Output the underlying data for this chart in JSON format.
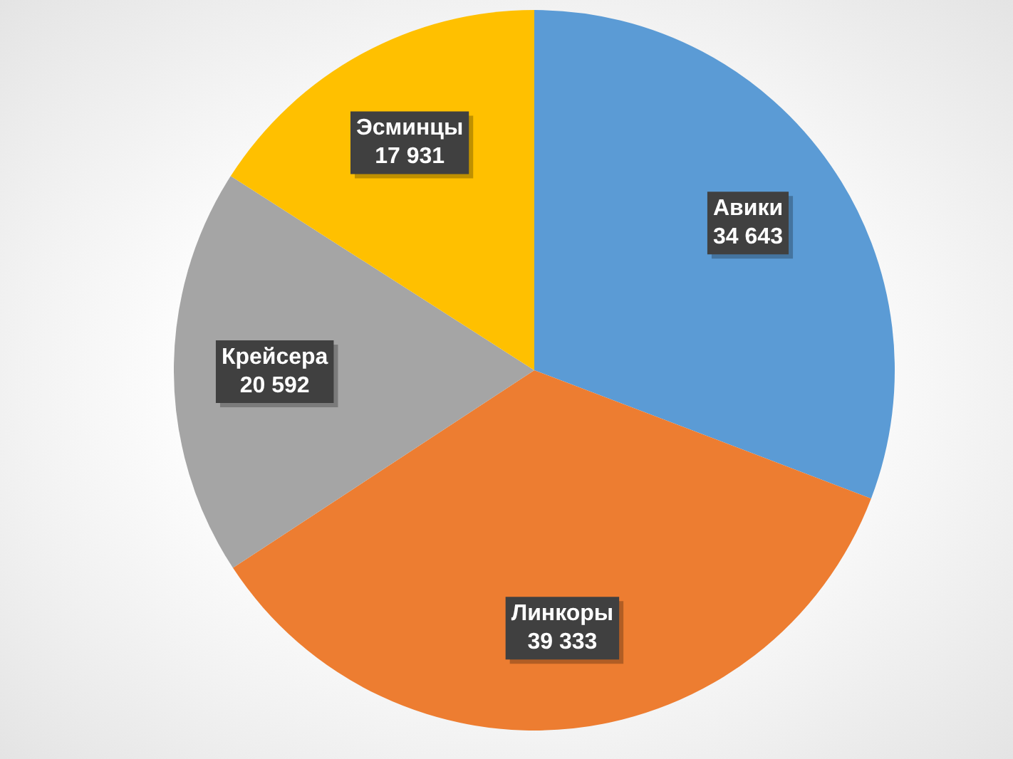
{
  "chart_data": {
    "type": "pie",
    "categories": [
      "Авики",
      "Линкоры",
      "Крейсера",
      "Эсминцы"
    ],
    "values": [
      34643,
      39333,
      20592,
      17931
    ],
    "value_labels": [
      "34 643",
      "39 333",
      "20 592",
      "17 931"
    ],
    "colors": [
      "#5b9bd5",
      "#ed7d31",
      "#a5a5a5",
      "#ffc000"
    ],
    "legend": false
  }
}
